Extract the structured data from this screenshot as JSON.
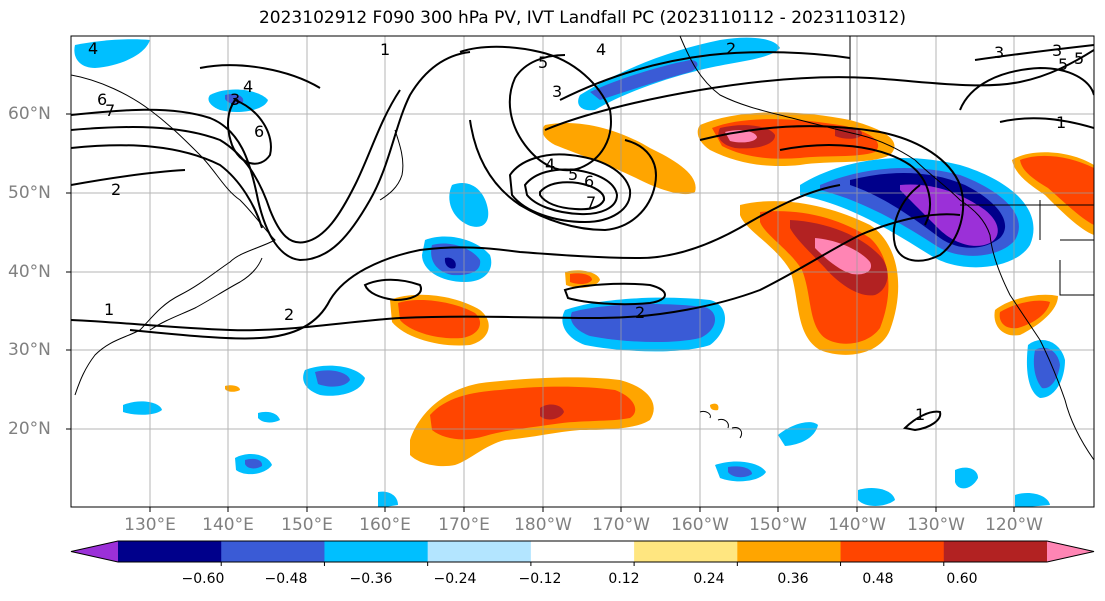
{
  "title": "2023102912 F090 300 hPa PV, IVT Landfall PC (2023110112 - 2023110312)",
  "map": {
    "lon_labels": [
      "130°E",
      "140°E",
      "150°E",
      "160°E",
      "170°E",
      "180°W",
      "170°W",
      "160°W",
      "150°W",
      "140°W",
      "130°W",
      "120°W"
    ],
    "lat_labels": [
      "60°N",
      "50°N",
      "40°N",
      "30°N",
      "20°N"
    ],
    "pv_contour_labels": [
      "4",
      "6",
      "7",
      "2",
      "1",
      "3",
      "6",
      "1",
      "4",
      "5",
      "3",
      "2",
      "3",
      "5",
      "4",
      "5",
      "6",
      "7",
      "2",
      "2",
      "1",
      "3",
      "5",
      "4",
      "1"
    ],
    "grid": true,
    "colors": {
      "ocean": "#ffffff",
      "coastline": "#000000",
      "contour": "#000000",
      "gridline": "#9e9e9e"
    }
  },
  "colorbar": {
    "tick_labels": [
      "−0.60",
      "−0.48",
      "−0.36",
      "−0.24",
      "−0.12",
      "0.12",
      "0.24",
      "0.36",
      "0.48",
      "0.60"
    ],
    "colors": [
      "#9b30d8",
      "#00008b",
      "#3a5bd6",
      "#00bfff",
      "#b3e5ff",
      "#ffffff",
      "#ffe680",
      "#ffa500",
      "#ff4500",
      "#b22222",
      "#ff85b4"
    ]
  }
}
